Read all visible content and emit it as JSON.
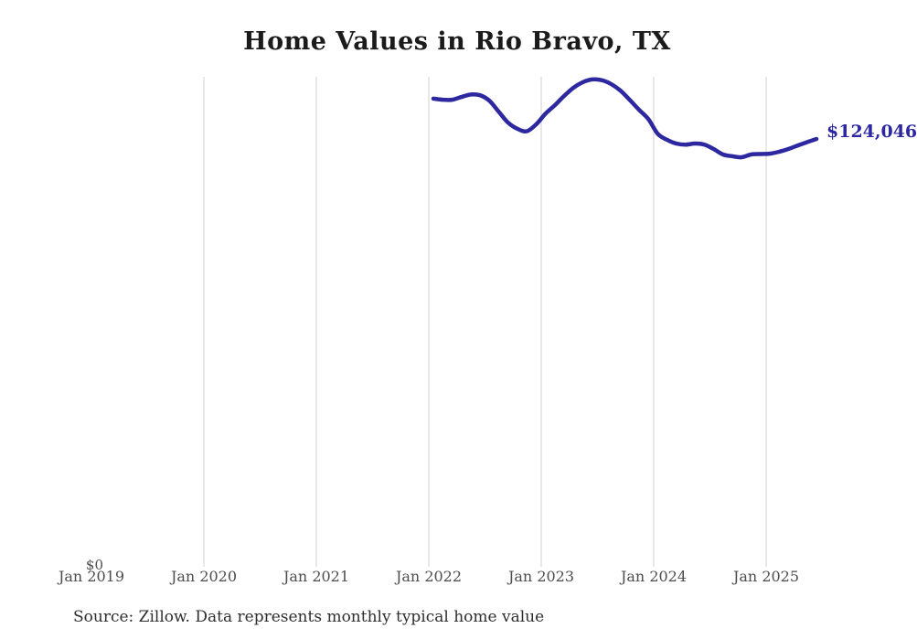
{
  "title": "Home Values in Rio Bravo, TX",
  "source_note": "Source: Zillow. Data represents monthly typical home value",
  "y_axis": {
    "zero_label": "$0"
  },
  "end_value_label": "$124,046",
  "colors": {
    "line": "#2d28a0",
    "end_label": "#2d28a0",
    "gridline": "#d2d2d2",
    "title_text": "#1b1b1b",
    "tick_text": "#4d4d4d",
    "source_text": "#2e2e2e",
    "background": "#ffffff"
  },
  "chart_data": {
    "type": "line",
    "title": "Home Values in Rio Bravo, TX",
    "series_name": "Monthly typical home value (USD)",
    "x_tick_labels": [
      "Jan 2019",
      "Jan 2020",
      "Jan 2021",
      "Jan 2022",
      "Jan 2023",
      "Jan 2024",
      "Jan 2025"
    ],
    "gridline_years": [
      2020,
      2021,
      2022,
      2023,
      2024,
      2025
    ],
    "x": [
      "2022-01",
      "2022-02",
      "2022-03",
      "2022-04",
      "2022-05",
      "2022-06",
      "2022-07",
      "2022-08",
      "2022-09",
      "2022-10",
      "2022-11",
      "2022-12",
      "2023-01",
      "2023-02",
      "2023-03",
      "2023-04",
      "2023-05",
      "2023-06",
      "2023-07",
      "2023-08",
      "2023-09",
      "2023-10",
      "2023-11",
      "2023-12",
      "2024-01",
      "2024-02",
      "2024-03",
      "2024-04",
      "2024-05",
      "2024-06",
      "2024-07",
      "2024-08",
      "2024-09",
      "2024-10",
      "2024-11",
      "2024-12",
      "2025-01",
      "2025-02",
      "2025-03",
      "2025-04",
      "2025-05",
      "2025-06"
    ],
    "values": [
      135800,
      135500,
      135500,
      136300,
      137000,
      136800,
      135200,
      132000,
      128800,
      127000,
      126300,
      128300,
      131400,
      133900,
      136600,
      139000,
      140600,
      141400,
      141200,
      140100,
      138200,
      135500,
      132600,
      129900,
      125600,
      123800,
      122700,
      122400,
      122700,
      122400,
      121100,
      119500,
      119000,
      118700,
      119500,
      119650,
      119750,
      120300,
      121100,
      122150,
      123100,
      124046
    ],
    "last_value_annotation": "$124,046",
    "xlabel": "",
    "ylabel": "",
    "ylim": [
      0,
      142000
    ],
    "xrange_axis": [
      "Jan 2019",
      "Jan 2025"
    ],
    "grid": "vertical",
    "legend": "none"
  }
}
